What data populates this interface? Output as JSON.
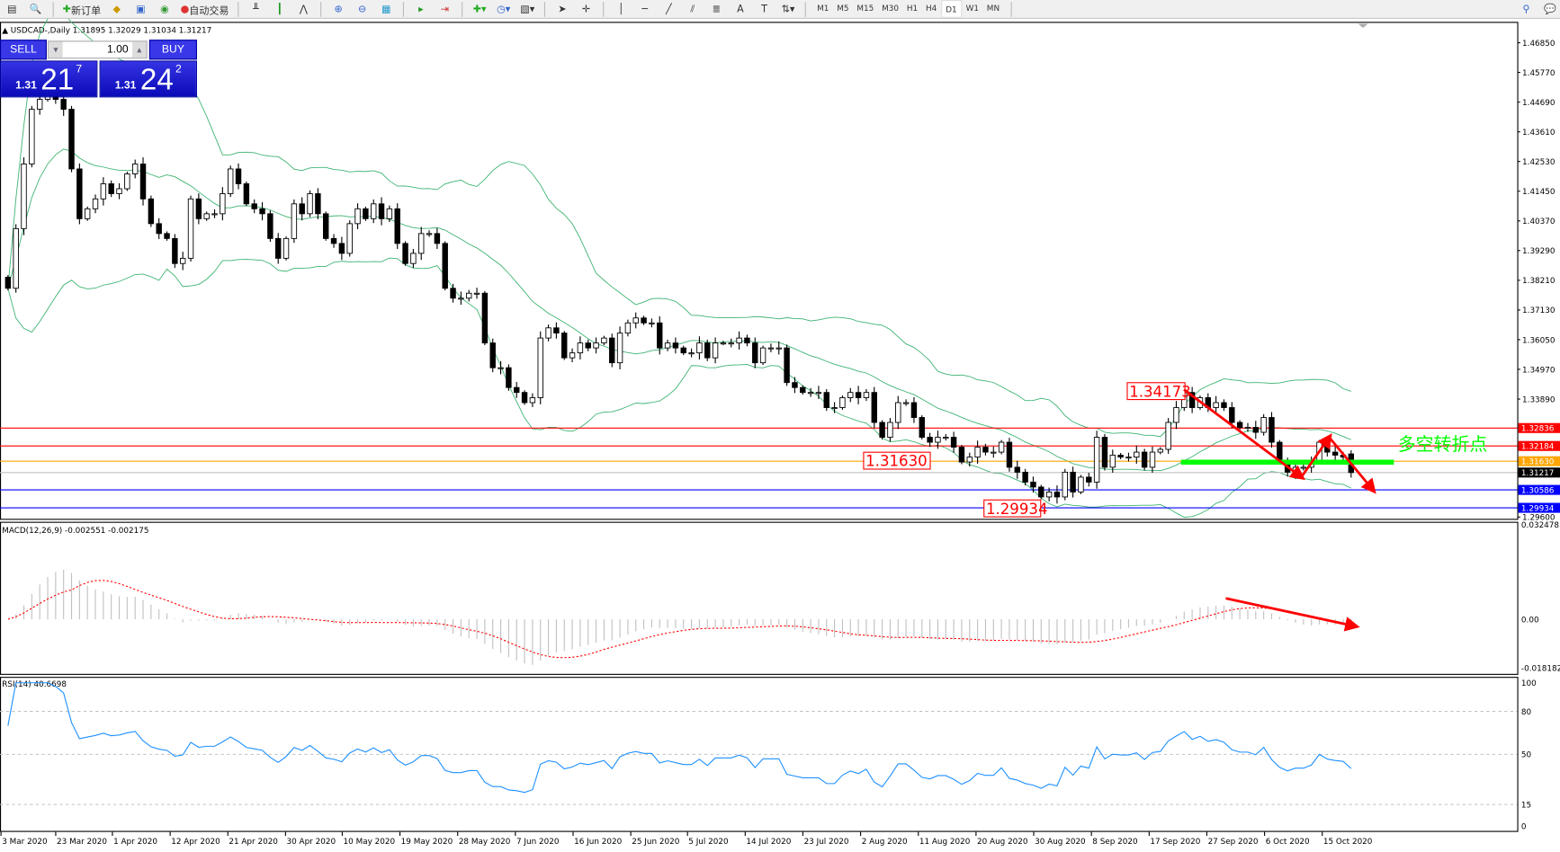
{
  "toolbar": {
    "new_order": "新订单",
    "auto_trading": "自动交易",
    "timeframes": [
      "M1",
      "M5",
      "M15",
      "M30",
      "H1",
      "H4",
      "D1",
      "W1",
      "MN"
    ],
    "selected_timeframe": "D1"
  },
  "trade_panel": {
    "sell_label": "SELL",
    "buy_label": "BUY",
    "lot": "1.00",
    "sell_prefix": "1.31",
    "sell_big": "21",
    "sell_sup": "7",
    "buy_prefix": "1.31",
    "buy_big": "24",
    "buy_sup": "2"
  },
  "chart_data": {
    "type": "candlestick",
    "symbol_header": "USDCAD-,Daily  1.31895 1.32029 1.31034 1.31217",
    "last_bar": {
      "open": 1.31895,
      "high": 1.32029,
      "low": 1.31034,
      "close": 1.31217
    },
    "closes": [
      1.3792,
      1.4009,
      1.4244,
      1.4443,
      1.4479,
      1.4497,
      1.4479,
      1.4443,
      1.4226,
      1.4045,
      1.4081,
      1.4117,
      1.4172,
      1.4136,
      1.4154,
      1.4208,
      1.4244,
      1.4117,
      1.4027,
      1.3991,
      1.3973,
      1.3882,
      1.3901,
      1.4117,
      1.4045,
      1.4063,
      1.4063,
      1.4136,
      1.4226,
      1.4172,
      1.4099,
      1.4081,
      1.4063,
      1.3973,
      1.3901,
      1.3973,
      1.4099,
      1.4063,
      1.4136,
      1.4063,
      1.3973,
      1.3955,
      1.3919,
      1.4027,
      1.4081,
      1.4045,
      1.4099,
      1.4045,
      1.4081,
      1.3955,
      1.3882,
      1.3919,
      1.3991,
      1.3991,
      1.3955,
      1.3792,
      1.3756,
      1.3756,
      1.3774,
      1.3774,
      1.3593,
      1.3503,
      1.3503,
      1.3431,
      1.3413,
      1.3376,
      1.3394,
      1.3611,
      1.3648,
      1.3629,
      1.3539,
      1.3557,
      1.3593,
      1.3575,
      1.3593,
      1.3611,
      1.3521,
      1.3629,
      1.3666,
      1.3684,
      1.3666,
      1.3666,
      1.3575,
      1.3593,
      1.3575,
      1.3557,
      1.3557,
      1.3593,
      1.3539,
      1.3593,
      1.3593,
      1.3593,
      1.3611,
      1.3593,
      1.3521,
      1.3575,
      1.3575,
      1.3575,
      1.3449,
      1.3431,
      1.3413,
      1.3413,
      1.3413,
      1.3358,
      1.3358,
      1.3394,
      1.3413,
      1.3394,
      1.3413,
      1.3304,
      1.325,
      1.3304,
      1.3376,
      1.3376,
      1.3322,
      1.325,
      1.3232,
      1.325,
      1.325,
      1.3214,
      1.316,
      1.3178,
      1.3214,
      1.3196,
      1.3196,
      1.3232,
      1.3141,
      1.3123,
      1.3087,
      1.3069,
      1.3033,
      1.3051,
      1.3033,
      1.3123,
      1.3051,
      1.3105,
      1.3087,
      1.325,
      1.3141,
      1.3185,
      1.3178,
      1.3178,
      1.3196,
      1.3141,
      1.3196,
      1.3206,
      1.3304,
      1.3358,
      1.3413,
      1.3358,
      1.3394,
      1.3358,
      1.3376,
      1.3358,
      1.3304,
      1.3286,
      1.3286,
      1.3268,
      1.3322,
      1.3232,
      1.316,
      1.3123,
      1.3141,
      1.3141,
      1.316,
      1.3232,
      1.3196,
      1.3185,
      1.3178,
      1.31217
    ],
    "price_axis": [
      "1.46850",
      "1.45770",
      "1.44690",
      "1.43610",
      "1.42530",
      "1.41450",
      "1.40370",
      "1.39290",
      "1.38210",
      "1.37130",
      "1.36050",
      "1.34970",
      "1.33890",
      "1.29600"
    ],
    "ylim": [
      1.296,
      1.4685
    ],
    "bollinger": {
      "period": 20,
      "deviation": 2,
      "color": "#3cb371"
    },
    "hlines": [
      {
        "value": "1.32836",
        "color": "#ff0000"
      },
      {
        "value": "1.32184",
        "color": "#ff0000"
      },
      {
        "value": "1.31630",
        "color": "#ffa500"
      },
      {
        "value": "1.31217",
        "color": "#000000",
        "line": "#c0c0c0"
      },
      {
        "value": "1.30586",
        "color": "#0000ff"
      },
      {
        "value": "1.29934",
        "color": "#0000ff"
      }
    ],
    "annotations": {
      "high_label": "1.34173",
      "pivot_label": "1.31630",
      "low_label": "1.29934",
      "pivot_text": "多空转折点",
      "pivot_color": "#00ff00"
    },
    "dates": [
      "3 Mar 2020",
      "23 Mar 2020",
      "1 Apr 2020",
      "12 Apr 2020",
      "21 Apr 2020",
      "30 Apr 2020",
      "10 May 2020",
      "19 May 2020",
      "28 May 2020",
      "7 Jun 2020",
      "16 Jun 2020",
      "25 Jun 2020",
      "5 Jul 2020",
      "14 Jul 2020",
      "23 Jul 2020",
      "2 Aug 2020",
      "11 Aug 2020",
      "20 Aug 2020",
      "30 Aug 2020",
      "8 Sep 2020",
      "17 Sep 2020",
      "27 Sep 2020",
      "6 Oct 2020",
      "15 Oct 2020"
    ],
    "macd": {
      "label": "MACD(12,26,9) -0.002551 -0.002175",
      "axis": [
        "0.032478",
        "0.00",
        "-0.018182"
      ],
      "ylim": [
        -0.018182,
        0.032478
      ]
    },
    "rsi": {
      "label": "RSI(14) 40.6698",
      "axis": [
        "100",
        "80",
        "50",
        "15",
        "0"
      ],
      "levels": [
        80,
        50,
        15
      ],
      "ylim": [
        0,
        100
      ],
      "color": "#1e90ff"
    }
  }
}
